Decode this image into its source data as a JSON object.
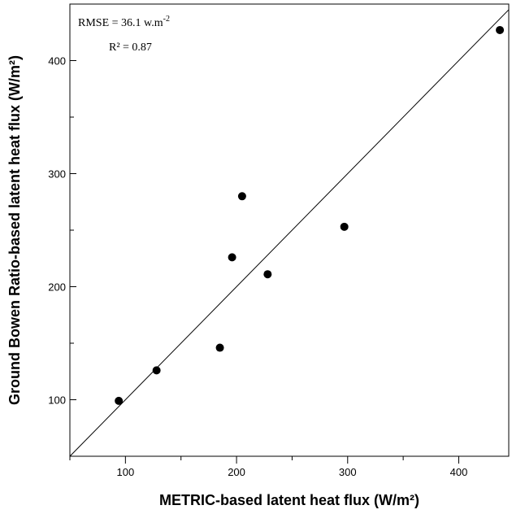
{
  "chart_data": {
    "type": "scatter",
    "xlabel": "METRIC-based latent heat flux (W/m²)",
    "ylabel": "Ground Bowen Ratio-based latent heat flux (W/m²)",
    "xlim": [
      50,
      445
    ],
    "ylim": [
      50,
      450
    ],
    "x_ticks_major": [
      100,
      200,
      300,
      400
    ],
    "x_ticks_minor": [
      50,
      150,
      250,
      350
    ],
    "y_ticks_major": [
      100,
      200,
      300,
      400
    ],
    "y_ticks_minor": [
      150,
      250,
      350
    ],
    "grid": false,
    "series": [
      {
        "x": [
          94,
          128,
          185,
          196,
          205,
          228,
          297,
          437
        ],
        "y": [
          99,
          126,
          146,
          226,
          280,
          211,
          253,
          427
        ]
      }
    ],
    "reference_line": {
      "x": [
        50,
        445
      ],
      "y": [
        50,
        445
      ]
    },
    "annotations": {
      "rmse_prefix": "RMSE = 36.1 w.m",
      "rmse_exponent": "-2",
      "r2": "R² = 0.87"
    }
  }
}
